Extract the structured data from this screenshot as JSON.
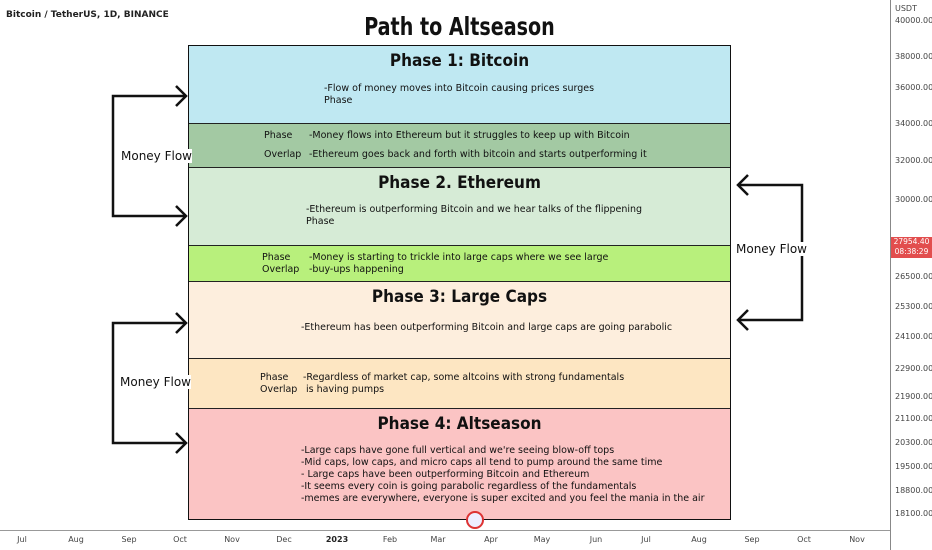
{
  "header": {
    "symbol": "Bitcoin / TetherUS, 1D, BINANCE",
    "title": "Path to Altseason"
  },
  "phases": [
    {
      "title": "Phase 1: Bitcoin",
      "desc": "-Flow of money moves into Bitcoin causing prices surges\nPhase",
      "color": "#bfe8f2"
    },
    {
      "title": "Phase 2. Ethereum",
      "desc": "-Ethereum is outperforming Bitcoin and we hear talks of the flippening\nPhase",
      "color": "#d6ebd6"
    },
    {
      "title": "Phase 3: Large Caps",
      "desc": "-Ethereum has been outperforming Bitcoin and large caps are going parabolic",
      "color": "#fdeedd"
    },
    {
      "title": "Phase 4: Altseason",
      "desc": "-Large caps have gone full vertical and we're seeing blow-off tops\n-Mid caps, low caps, and micro caps all tend to pump around the same time\n- Large caps have been outperforming Bitcoin and Ethereum\n-It seems every coin is going parabolic regardless of the fundamentals\n-memes are everywhere, everyone is super excited and you feel the mania in the air",
      "color": "#fbc4c4"
    }
  ],
  "overlaps": [
    {
      "label1": "Phase",
      "label2": "Overlap",
      "line1": "-Money flows into Ethereum but it struggles to keep up with Bitcoin",
      "line2": "-Ethereum goes back and forth with bitcoin and starts outperforming it",
      "color": "#a3c9a3"
    },
    {
      "label1": "Phase",
      "label2": "Overlap",
      "line1": "-Money is starting to trickle into large caps where we see large",
      "line2": "-buy-ups happening",
      "color": "#b8f07c"
    },
    {
      "label1": "Phase",
      "label2": "Overlap",
      "line1": "-Regardless of market cap, some altcoins with strong fundamentals",
      "line2": " is having pumps",
      "color": "#fde6c2"
    }
  ],
  "money_flow": [
    "Money Flow",
    "Money Flow",
    "Money Flow"
  ],
  "price_axis": {
    "currency": "USDT",
    "labels": [
      "40000.00",
      "38000.00",
      "36000.00",
      "34000.00",
      "32000.00",
      "30000.00",
      "26500.00",
      "25300.00",
      "24100.00",
      "22900.00",
      "21900.00",
      "21100.00",
      "20300.00",
      "19500.00",
      "18800.00",
      "18100.00"
    ],
    "current_price": "27954.40",
    "countdown": "08:38:29",
    "current_color": "#e24e4e"
  },
  "time_axis": [
    "Jul",
    "Aug",
    "Sep",
    "Oct",
    "Nov",
    "Dec",
    "2023",
    "Feb",
    "Mar",
    "Apr",
    "May",
    "Jun",
    "Jul",
    "Aug",
    "Sep",
    "Oct",
    "Nov"
  ]
}
